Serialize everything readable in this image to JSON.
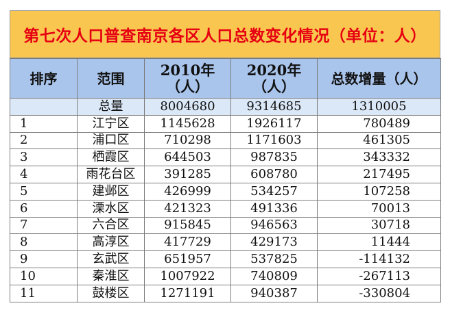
{
  "title": "第七次人口普查南京各区人口总数变化情况（单位：人）",
  "headers": {
    "rank": "排序",
    "area": "范围",
    "y2010_line1": "2010年",
    "y2010_line2": "（人）",
    "y2020_line1": "2020年",
    "y2020_line2": "（人）",
    "increase": "总数增量（人）"
  },
  "total": {
    "name": "总量",
    "y2010": "8004680",
    "y2020": "9314685",
    "increase": "1310005"
  },
  "rows": [
    {
      "rank": "1",
      "name": "江宁区",
      "y2010": "1145628",
      "y2020": "1926117",
      "increase": "780489"
    },
    {
      "rank": "2",
      "name": "浦口区",
      "y2010": "710298",
      "y2020": "1171603",
      "increase": "461305"
    },
    {
      "rank": "3",
      "name": "栖霞区",
      "y2010": "644503",
      "y2020": "987835",
      "increase": "343332"
    },
    {
      "rank": "4",
      "name": "雨花台区",
      "y2010": "391285",
      "y2020": "608780",
      "increase": "217495"
    },
    {
      "rank": "5",
      "name": "建邺区",
      "y2010": "426999",
      "y2020": "534257",
      "increase": "107258"
    },
    {
      "rank": "6",
      "name": "溧水区",
      "y2010": "421323",
      "y2020": "491336",
      "increase": "70013"
    },
    {
      "rank": "7",
      "name": "六合区",
      "y2010": "915845",
      "y2020": "946563",
      "increase": "30718"
    },
    {
      "rank": "8",
      "name": "高淳区",
      "y2010": "417729",
      "y2020": "429173",
      "increase": "11444"
    },
    {
      "rank": "9",
      "name": "玄武区",
      "y2010": "651957",
      "y2020": "537825",
      "increase": "-114132"
    },
    {
      "rank": "10",
      "name": "秦淮区",
      "y2010": "1007922",
      "y2020": "740809",
      "increase": "-267113"
    },
    {
      "rank": "11",
      "name": "鼓楼区",
      "y2010": "1271191",
      "y2020": "940387",
      "increase": "-330804"
    }
  ]
}
